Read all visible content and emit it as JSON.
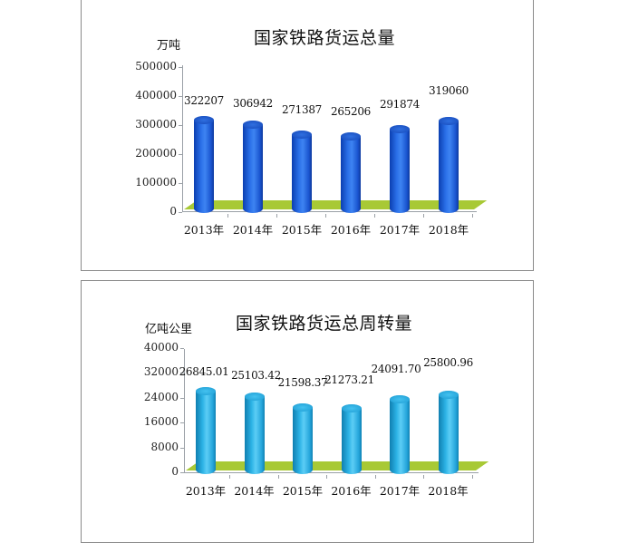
{
  "chart_data": [
    {
      "type": "bar",
      "title": "国家铁路货运总量",
      "ylabel": "万吨",
      "xlabel": "",
      "categories": [
        "2013年",
        "2014年",
        "2015年",
        "2016年",
        "2017年",
        "2018年"
      ],
      "values": [
        322207,
        306942,
        271387,
        265206,
        291874,
        319060
      ],
      "value_labels": [
        "322207",
        "306942",
        "271387",
        "265206",
        "291874",
        "319060"
      ],
      "yticks": [
        "500000",
        "400000",
        "300000",
        "200000",
        "100000",
        "0"
      ],
      "ylim": [
        0,
        500000
      ],
      "bar_color": "#1f5fd8",
      "floor_color": "#a8c935",
      "style": "3d-cylinder",
      "grid": false,
      "legend": null
    },
    {
      "type": "bar",
      "title": "国家铁路货运总周转量",
      "ylabel": "亿吨公里",
      "xlabel": "",
      "categories": [
        "2013年",
        "2014年",
        "2015年",
        "2016年",
        "2017年",
        "2018年"
      ],
      "values": [
        26845.01,
        25103.42,
        21598.37,
        21273.21,
        24091.7,
        25800.96
      ],
      "value_labels": [
        "26845.01",
        "25103.42",
        "21598.37",
        "21273.21",
        "24091.70",
        "25800.96"
      ],
      "yticks": [
        "40000",
        "32000",
        "24000",
        "16000",
        "8000",
        "0"
      ],
      "ylim": [
        0,
        40000
      ],
      "bar_color": "#2db3e6",
      "floor_color": "#a8c935",
      "style": "3d-cylinder",
      "grid": false,
      "legend": null
    }
  ]
}
